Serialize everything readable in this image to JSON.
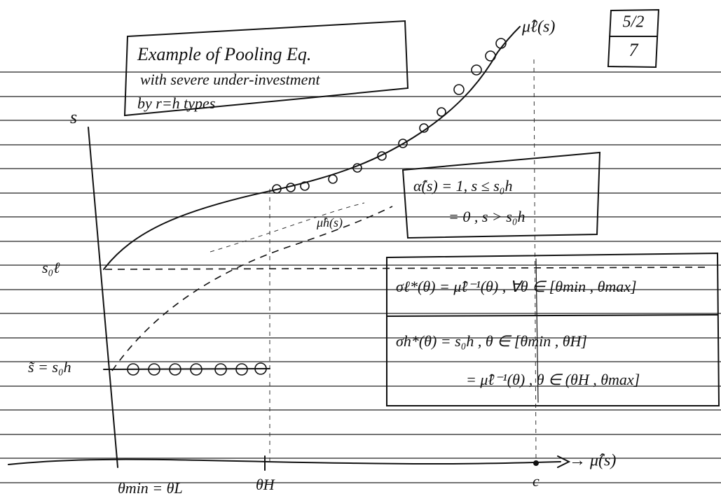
{
  "page_number": {
    "date": "5/2",
    "page": "7"
  },
  "note_box": {
    "lines": [
      "Example of Pooling Eq.",
      "with severe under-investment",
      "by r=h types"
    ]
  },
  "curves": {
    "mu_l": "μ̂ℓ(s)",
    "mu_h": "μ̂h(s)"
  },
  "axes": {
    "y_label": "s",
    "x_label": "→ μ̂(s)",
    "y_ticks": [
      "s₀ℓ",
      "s̃ = s₀h"
    ],
    "x_ticks": [
      "θmin = θL",
      "θH",
      "c"
    ]
  },
  "alpha_box": {
    "lines": [
      "α̂(s) = 1, s ≤ s₀h",
      "= 0 , s > s₀h"
    ]
  },
  "sigma_box": {
    "lines": [
      "σℓ*(θ) = μ̂ℓ⁻¹(θ) , ∀θ ∈ [θmin , θmax]",
      "σh*(θ) = s₀h , θ ∈ [θmin , θH]",
      "= μ̂ℓ⁻¹(θ) , θ ∈ (θH , θmax]"
    ]
  }
}
